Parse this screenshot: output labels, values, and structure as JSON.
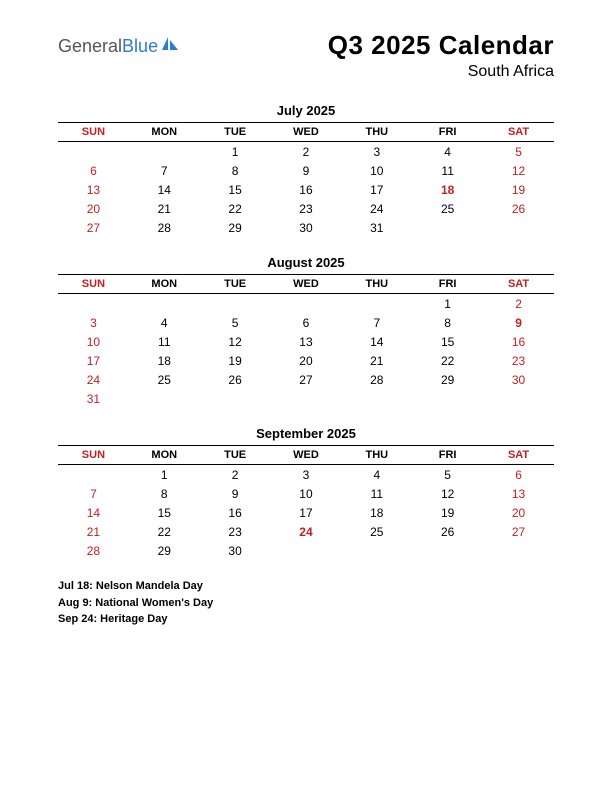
{
  "logo": {
    "word1": "General",
    "word2": "Blue",
    "mark_color": "#2b7dd1"
  },
  "title": "Q3 2025 Calendar",
  "subtitle": "South Africa",
  "day_headers": [
    "SUN",
    "MON",
    "TUE",
    "WED",
    "THU",
    "FRI",
    "SAT"
  ],
  "weekend_cols": [
    0,
    6
  ],
  "months": [
    {
      "name": "July 2025",
      "weeks": [
        [
          "",
          "",
          "1",
          "2",
          "3",
          "4",
          "5"
        ],
        [
          "6",
          "7",
          "8",
          "9",
          "10",
          "11",
          "12"
        ],
        [
          "13",
          "14",
          "15",
          "16",
          "17",
          "18",
          "19"
        ],
        [
          "20",
          "21",
          "22",
          "23",
          "24",
          "25",
          "26"
        ],
        [
          "27",
          "28",
          "29",
          "30",
          "31",
          "",
          ""
        ]
      ],
      "holidays": [
        "18"
      ]
    },
    {
      "name": "August 2025",
      "weeks": [
        [
          "",
          "",
          "",
          "",
          "",
          "1",
          "2"
        ],
        [
          "3",
          "4",
          "5",
          "6",
          "7",
          "8",
          "9"
        ],
        [
          "10",
          "11",
          "12",
          "13",
          "14",
          "15",
          "16"
        ],
        [
          "17",
          "18",
          "19",
          "20",
          "21",
          "22",
          "23"
        ],
        [
          "24",
          "25",
          "26",
          "27",
          "28",
          "29",
          "30"
        ],
        [
          "31",
          "",
          "",
          "",
          "",
          "",
          ""
        ]
      ],
      "holidays": [
        "9"
      ]
    },
    {
      "name": "September 2025",
      "weeks": [
        [
          "",
          "1",
          "2",
          "3",
          "4",
          "5",
          "6"
        ],
        [
          "7",
          "8",
          "9",
          "10",
          "11",
          "12",
          "13"
        ],
        [
          "14",
          "15",
          "16",
          "17",
          "18",
          "19",
          "20"
        ],
        [
          "21",
          "22",
          "23",
          "24",
          "25",
          "26",
          "27"
        ],
        [
          "28",
          "29",
          "30",
          "",
          "",
          "",
          ""
        ]
      ],
      "holidays": [
        "24"
      ]
    }
  ],
  "holiday_list": [
    "Jul 18: Nelson Mandela Day",
    "Aug 9: National Women's Day",
    "Sep 24: Heritage Day"
  ],
  "colors": {
    "weekend": "#c41e1e",
    "text": "#000000",
    "logo_gray": "#555555",
    "logo_blue": "#2b7dd1"
  }
}
